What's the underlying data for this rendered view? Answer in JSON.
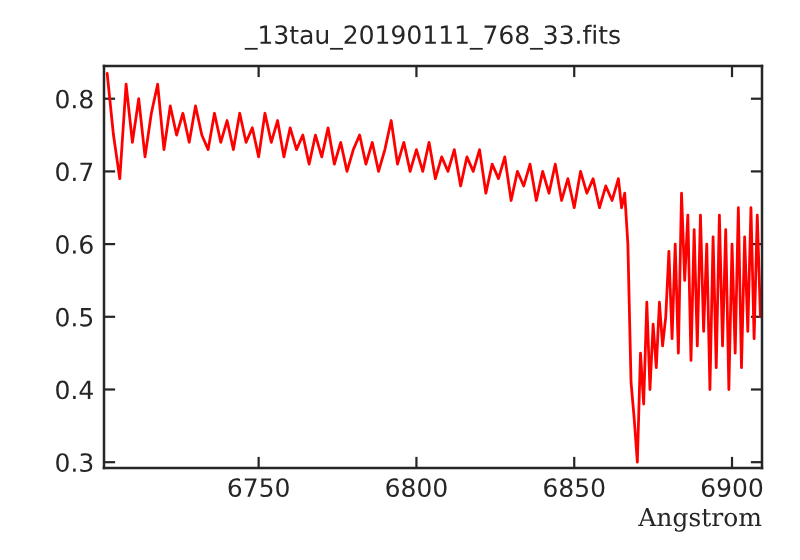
{
  "chart_data": {
    "type": "line",
    "title": "_13tau_20190111_768_33.fits",
    "xlabel": "Angstrom",
    "color": "#ff0000",
    "grid": false,
    "legend": false,
    "marker": "none",
    "line_style": "solid",
    "xlim": [
      6701,
      6909.5
    ],
    "ylim": [
      0.292,
      0.845
    ],
    "xticks": [
      6750,
      6800,
      6850,
      6900
    ],
    "yticks": [
      0.3,
      0.4,
      0.5,
      0.6,
      0.7,
      0.8
    ],
    "x": [
      6702,
      6704,
      6706,
      6708,
      6710,
      6712,
      6714,
      6716,
      6718,
      6720,
      6722,
      6724,
      6726,
      6728,
      6730,
      6732,
      6734,
      6736,
      6738,
      6740,
      6742,
      6744,
      6746,
      6748,
      6750,
      6752,
      6754,
      6756,
      6758,
      6760,
      6762,
      6764,
      6766,
      6768,
      6770,
      6772,
      6774,
      6776,
      6778,
      6780,
      6782,
      6784,
      6786,
      6788,
      6790,
      6792,
      6794,
      6796,
      6798,
      6800,
      6802,
      6804,
      6806,
      6808,
      6810,
      6812,
      6814,
      6816,
      6818,
      6820,
      6822,
      6824,
      6826,
      6828,
      6830,
      6832,
      6834,
      6836,
      6838,
      6840,
      6842,
      6844,
      6846,
      6848,
      6850,
      6852,
      6854,
      6856,
      6858,
      6860,
      6862,
      6864,
      6865,
      6866,
      6867,
      6868,
      6869,
      6870,
      6871,
      6872,
      6873,
      6874,
      6875,
      6876,
      6877,
      6878,
      6879,
      6880,
      6881,
      6882,
      6883,
      6884,
      6885,
      6886,
      6887,
      6888,
      6889,
      6890,
      6891,
      6892,
      6893,
      6894,
      6895,
      6896,
      6897,
      6898,
      6899,
      6900,
      6901,
      6902,
      6903,
      6904,
      6905,
      6906,
      6907,
      6908,
      6909
    ],
    "values": [
      0.835,
      0.75,
      0.69,
      0.82,
      0.74,
      0.8,
      0.72,
      0.78,
      0.82,
      0.73,
      0.79,
      0.75,
      0.78,
      0.74,
      0.79,
      0.75,
      0.73,
      0.78,
      0.74,
      0.77,
      0.73,
      0.78,
      0.74,
      0.76,
      0.72,
      0.78,
      0.74,
      0.77,
      0.72,
      0.76,
      0.73,
      0.75,
      0.71,
      0.75,
      0.72,
      0.76,
      0.71,
      0.74,
      0.7,
      0.73,
      0.75,
      0.71,
      0.74,
      0.7,
      0.73,
      0.77,
      0.71,
      0.74,
      0.7,
      0.73,
      0.7,
      0.74,
      0.69,
      0.72,
      0.7,
      0.73,
      0.68,
      0.72,
      0.7,
      0.73,
      0.67,
      0.71,
      0.69,
      0.72,
      0.66,
      0.7,
      0.68,
      0.71,
      0.66,
      0.7,
      0.67,
      0.71,
      0.66,
      0.69,
      0.65,
      0.7,
      0.67,
      0.69,
      0.65,
      0.68,
      0.66,
      0.69,
      0.65,
      0.67,
      0.6,
      0.41,
      0.36,
      0.3,
      0.45,
      0.38,
      0.52,
      0.4,
      0.49,
      0.43,
      0.52,
      0.46,
      0.5,
      0.59,
      0.47,
      0.6,
      0.45,
      0.67,
      0.55,
      0.64,
      0.44,
      0.62,
      0.46,
      0.64,
      0.48,
      0.6,
      0.4,
      0.61,
      0.43,
      0.64,
      0.46,
      0.62,
      0.4,
      0.6,
      0.45,
      0.65,
      0.43,
      0.61,
      0.48,
      0.65,
      0.47,
      0.64,
      0.5
    ]
  }
}
